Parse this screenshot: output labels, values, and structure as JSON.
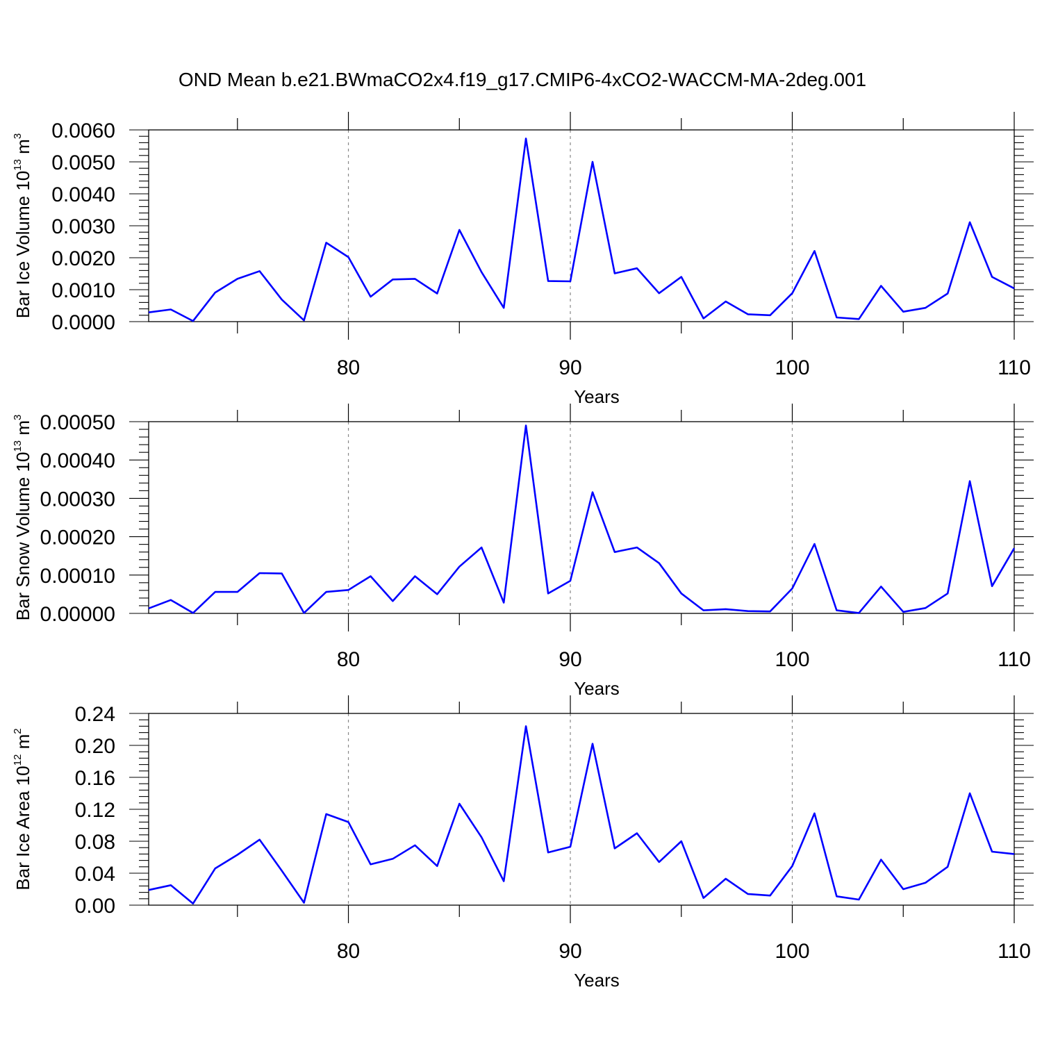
{
  "figure": {
    "title": "OND Mean b.e21.BWmaCO2x4.f19_g17.CMIP6-4xCO2-WACCM-MA-2deg.001",
    "line_color": "#0000ff",
    "grid_color": "#888888"
  },
  "chart_data": [
    {
      "type": "line",
      "title": "",
      "xlabel": "Years",
      "ylabel": {
        "prefix": "Bar Ice Volume 10",
        "exp": "13",
        "unit": " m",
        "unit_exp": "3"
      },
      "xlim": [
        71,
        110
      ],
      "ylim": [
        0,
        0.006
      ],
      "x_ticks": [
        80,
        90,
        100,
        110
      ],
      "x_tick_labels": [
        "80",
        "90",
        "100",
        "110"
      ],
      "y_ticks": [
        0,
        0.001,
        0.002,
        0.003,
        0.004,
        0.005,
        0.006
      ],
      "y_tick_labels": [
        "0.0000",
        "0.0010",
        "0.0020",
        "0.0030",
        "0.0040",
        "0.0050",
        "0.0060"
      ],
      "y_minor_step": 0.0002,
      "grid": "vertical-dashed",
      "series": [
        {
          "x": [
            71,
            72,
            73,
            74,
            75,
            76,
            77,
            78,
            79,
            80,
            81,
            82,
            83,
            84,
            85,
            86,
            87,
            88,
            89,
            90,
            91,
            92,
            93,
            94,
            95,
            96,
            97,
            98,
            99,
            100,
            101,
            102,
            103,
            104,
            105,
            106,
            107,
            108,
            109,
            110
          ],
          "values": [
            0.00029,
            0.00038,
            2e-05,
            0.00091,
            0.00134,
            0.00158,
            0.00069,
            4e-05,
            0.00247,
            0.00202,
            0.00078,
            0.00132,
            0.00134,
            0.00088,
            0.00287,
            0.00155,
            0.00043,
            0.00573,
            0.00127,
            0.00126,
            0.005,
            0.00151,
            0.00167,
            0.00089,
            0.0014,
            0.0001,
            0.00063,
            0.00023,
            0.0002,
            0.00089,
            0.00221,
            0.00013,
            8e-05,
            0.00112,
            0.00031,
            0.00043,
            0.00088,
            0.00311,
            0.0014,
            0.00104
          ]
        }
      ]
    },
    {
      "type": "line",
      "title": "",
      "xlabel": "Years",
      "ylabel": {
        "prefix": "Bar Snow Volume 10",
        "exp": "13",
        "unit": " m",
        "unit_exp": "3"
      },
      "xlim": [
        71,
        110
      ],
      "ylim": [
        0,
        0.0005
      ],
      "x_ticks": [
        80,
        90,
        100,
        110
      ],
      "x_tick_labels": [
        "80",
        "90",
        "100",
        "110"
      ],
      "y_ticks": [
        0,
        0.0001,
        0.0002,
        0.0003,
        0.0004,
        0.0005
      ],
      "y_tick_labels": [
        "0.00000",
        "0.00010",
        "0.00020",
        "0.00030",
        "0.00040",
        "0.00050"
      ],
      "y_minor_step": 2e-05,
      "grid": "vertical-dashed",
      "series": [
        {
          "x": [
            71,
            72,
            73,
            74,
            75,
            76,
            77,
            78,
            79,
            80,
            81,
            82,
            83,
            84,
            85,
            86,
            87,
            88,
            89,
            90,
            91,
            92,
            93,
            94,
            95,
            96,
            97,
            98,
            99,
            100,
            101,
            102,
            103,
            104,
            105,
            106,
            107,
            108,
            109,
            110
          ],
          "values": [
            1.3e-05,
            3.5e-05,
            1e-06,
            5.6e-05,
            5.6e-05,
            0.000105,
            0.000104,
            1e-06,
            5.6e-05,
            6.1e-05,
            9.7e-05,
            3.2e-05,
            9.7e-05,
            5e-05,
            0.000122,
            0.000172,
            2.8e-05,
            0.00049,
            5.2e-05,
            8.5e-05,
            0.000316,
            0.00016,
            0.000172,
            0.000131,
            5.2e-05,
            8e-06,
            1.1e-05,
            6e-06,
            5e-06,
            6.5e-05,
            0.000181,
            8e-06,
            1e-06,
            7e-05,
            4e-06,
            1.4e-05,
            5.2e-05,
            0.000345,
            7.1e-05,
            0.00017
          ]
        }
      ]
    },
    {
      "type": "line",
      "title": "",
      "xlabel": "Years",
      "ylabel": {
        "prefix": "Bar Ice Area 10",
        "exp": "12",
        "unit": " m",
        "unit_exp": "2"
      },
      "xlim": [
        71,
        110
      ],
      "ylim": [
        0,
        0.24
      ],
      "x_ticks": [
        80,
        90,
        100,
        110
      ],
      "x_tick_labels": [
        "80",
        "90",
        "100",
        "110"
      ],
      "y_ticks": [
        0,
        0.04,
        0.08,
        0.12,
        0.16,
        0.2,
        0.24
      ],
      "y_tick_labels": [
        "0.00",
        "0.04",
        "0.08",
        "0.12",
        "0.16",
        "0.20",
        "0.24"
      ],
      "y_minor_step": 0.008,
      "grid": "vertical-dashed",
      "series": [
        {
          "x": [
            71,
            72,
            73,
            74,
            75,
            76,
            77,
            78,
            79,
            80,
            81,
            82,
            83,
            84,
            85,
            86,
            87,
            88,
            89,
            90,
            91,
            92,
            93,
            94,
            95,
            96,
            97,
            98,
            99,
            100,
            101,
            102,
            103,
            104,
            105,
            106,
            107,
            108,
            109,
            110
          ],
          "values": [
            0.019,
            0.025,
            0.002,
            0.046,
            0.063,
            0.082,
            0.043,
            0.003,
            0.114,
            0.104,
            0.051,
            0.058,
            0.075,
            0.049,
            0.127,
            0.085,
            0.03,
            0.224,
            0.066,
            0.073,
            0.202,
            0.071,
            0.09,
            0.054,
            0.08,
            0.009,
            0.033,
            0.014,
            0.012,
            0.049,
            0.115,
            0.011,
            0.007,
            0.057,
            0.02,
            0.028,
            0.048,
            0.14,
            0.067,
            0.064
          ]
        }
      ]
    }
  ]
}
